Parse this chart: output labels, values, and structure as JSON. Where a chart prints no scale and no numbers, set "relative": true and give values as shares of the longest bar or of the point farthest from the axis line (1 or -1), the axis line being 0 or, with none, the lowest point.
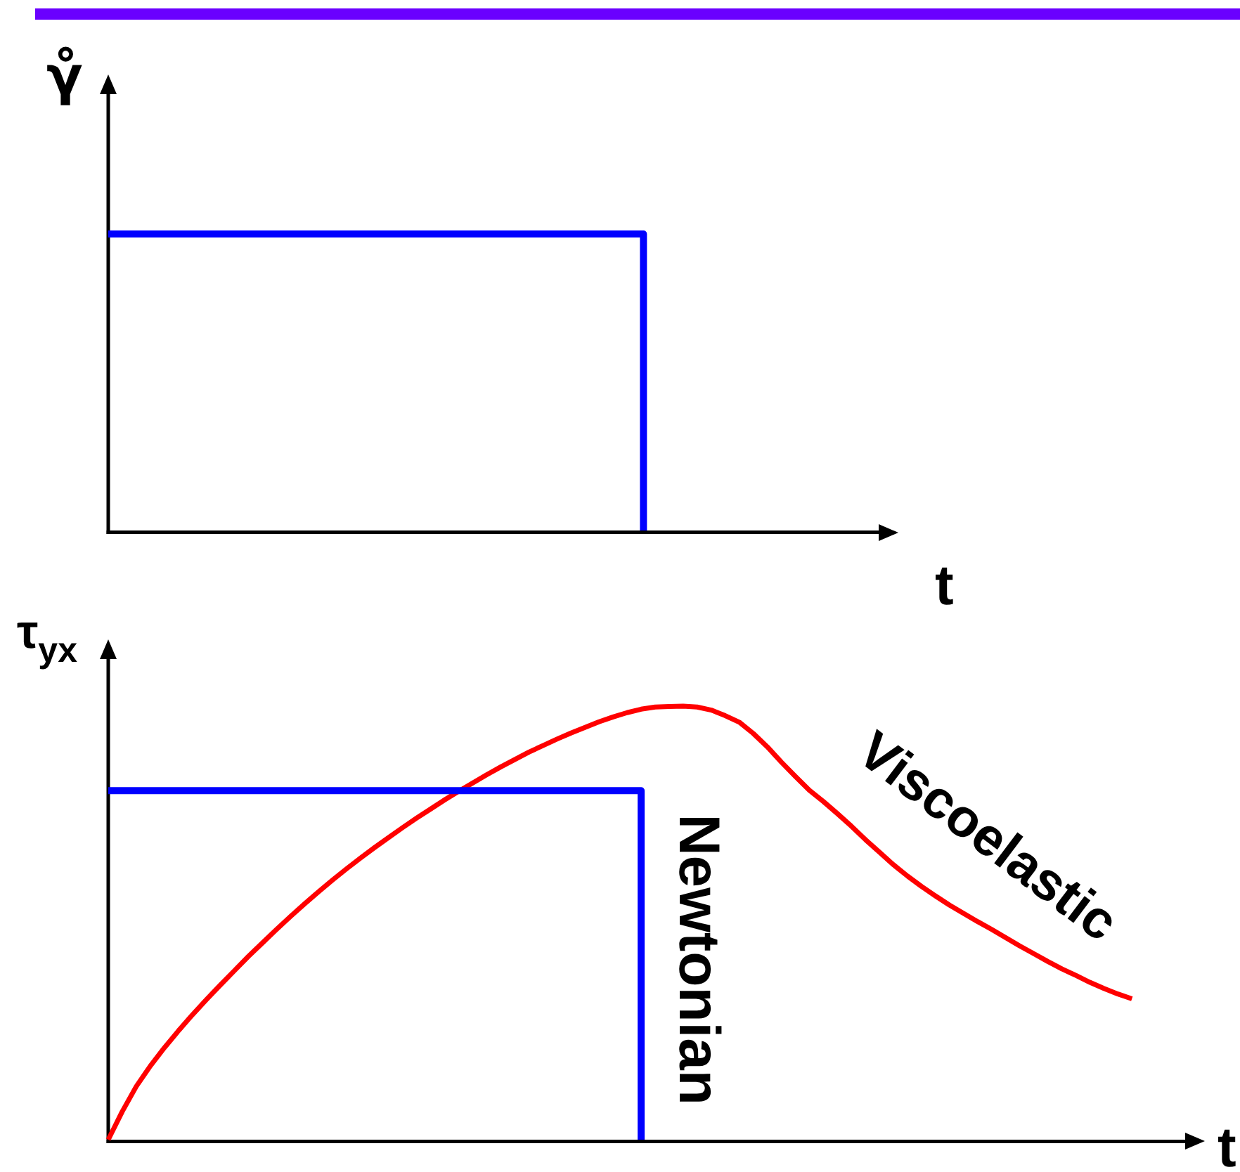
{
  "chart_data": [
    {
      "type": "step",
      "relative": true,
      "xlabel": "t",
      "ylabel": "γ̊",
      "color": "#0000ff",
      "categories": [
        null,
        null,
        null,
        null,
        null,
        null,
        null,
        null,
        null,
        null,
        null,
        null,
        null,
        null,
        null,
        null,
        null,
        null,
        null,
        null,
        null,
        null,
        null,
        null,
        null,
        null,
        null,
        null,
        null,
        null,
        null,
        null,
        null,
        null,
        null,
        null,
        null,
        null,
        null,
        null,
        null,
        null,
        null,
        null,
        null,
        null,
        null,
        null,
        null,
        null,
        null,
        null,
        null,
        null,
        null,
        null,
        null
      ],
      "values": [
        1,
        1,
        1,
        1,
        1,
        1,
        1,
        1,
        1,
        1,
        1,
        1,
        1,
        1,
        1,
        1,
        1,
        1,
        1,
        1,
        1,
        1,
        1,
        1,
        1,
        1,
        1,
        1,
        1,
        1,
        1,
        1,
        1,
        1,
        1,
        1,
        1,
        1,
        0,
        null,
        null,
        null,
        null,
        null,
        null,
        null,
        null,
        null,
        null,
        null,
        null,
        null,
        null,
        null,
        null,
        null,
        null
      ]
    },
    {
      "type": "line",
      "relative": true,
      "xlabel": "t",
      "ylabel": "τ$_{yx}$",
      "categories": [
        null,
        null,
        null,
        null,
        null,
        null,
        null,
        null,
        null,
        null,
        null,
        null,
        null,
        null,
        null,
        null,
        null,
        null,
        null,
        null,
        null,
        null,
        null,
        null,
        null,
        null,
        null,
        null,
        null,
        null,
        null,
        null,
        null,
        null,
        null,
        null,
        null,
        null,
        null,
        null,
        null,
        null,
        null,
        null,
        null,
        null,
        null,
        null,
        null,
        null,
        null,
        null,
        null,
        null,
        null,
        null,
        null,
        null,
        null,
        null,
        null,
        null,
        null,
        null,
        null,
        null,
        null,
        null,
        null,
        null,
        null,
        null,
        null,
        null,
        null,
        null,
        null,
        null,
        null
      ],
      "series": [
        {
          "name": "Newtonian",
          "type": "step",
          "color": "#0000ff",
          "values": [
            0.805,
            0.805,
            0.805,
            0.805,
            0.805,
            0.805,
            0.805,
            0.805,
            0.805,
            0.805,
            0.805,
            0.805,
            0.805,
            0.805,
            0.805,
            0.805,
            0.805,
            0.805,
            0.805,
            0.805,
            0.805,
            0.805,
            0.805,
            0.805,
            0.805,
            0.805,
            0.805,
            0.805,
            0.805,
            0.805,
            0.805,
            0.805,
            0.805,
            0.805,
            0.805,
            0.805,
            0.805,
            0.805,
            0,
            null,
            null,
            null,
            null,
            null,
            null,
            null,
            null,
            null,
            null,
            null,
            null,
            null,
            null,
            null,
            null,
            null,
            null,
            null,
            null,
            null,
            null,
            null,
            null,
            null,
            null,
            null,
            null,
            null,
            null,
            null,
            null,
            null,
            null,
            null,
            null,
            null,
            null,
            null,
            null
          ]
        },
        {
          "name": "Viscoelastic",
          "color": "#ff0000",
          "values": [
            0,
            0.065,
            0.123,
            0.17,
            0.212,
            0.251,
            0.288,
            0.323,
            0.357,
            0.39,
            0.423,
            0.454,
            0.485,
            0.515,
            0.544,
            0.572,
            0.599,
            0.625,
            0.65,
            0.674,
            0.697,
            0.72,
            0.742,
            0.763,
            0.784,
            0.804,
            0.823,
            0.842,
            0.86,
            0.877,
            0.894,
            0.909,
            0.924,
            0.938,
            0.951,
            0.964,
            0.975,
            0.985,
            0.993,
            0.998,
            0.999,
            1,
            0.998,
            0.991,
            0.978,
            0.963,
            0.937,
            0.906,
            0.871,
            0.838,
            0.806,
            0.78,
            0.752,
            0.723,
            0.692,
            0.663,
            0.634,
            0.608,
            0.584,
            0.562,
            0.541,
            0.522,
            0.503,
            0.485,
            0.466,
            0.447,
            0.429,
            0.411,
            0.394,
            0.379,
            0.363,
            0.349,
            0.336,
            0.325,
            null,
            null,
            null,
            null,
            null
          ]
        }
      ]
    }
  ]
}
